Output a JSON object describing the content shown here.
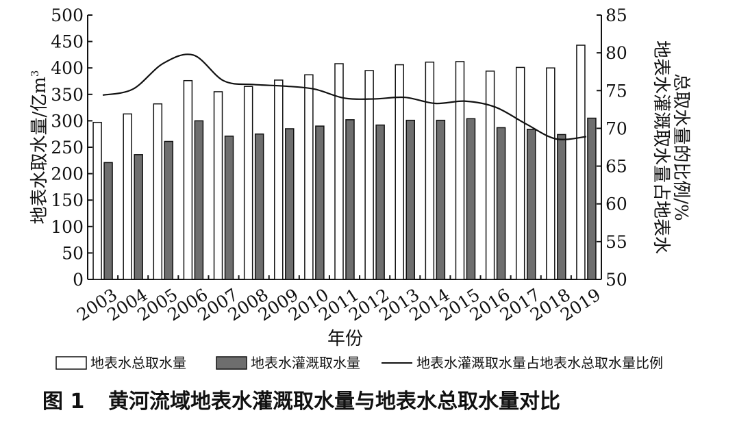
{
  "figure": {
    "caption_number": "图 1",
    "caption_text": "黄河流域地表水灌溉取水量与地表水总取水量对比"
  },
  "chart_data": {
    "type": "bar",
    "categories": [
      "2003",
      "2004",
      "2005",
      "2006",
      "2007",
      "2008",
      "2009",
      "2010",
      "2011",
      "2012",
      "2013",
      "2014",
      "2015",
      "2016",
      "2017",
      "2018",
      "2019"
    ],
    "xlabel": "年份",
    "ylabel_left_main": "地表水取水量/亿m",
    "ylabel_left_sup": "3",
    "ylabel_right_line1": "地表水灌溉取水量占地表水",
    "ylabel_right_line2": "总取水量的比例/%",
    "ylim_left": [
      0,
      500
    ],
    "yticks_left": [
      0,
      50,
      100,
      150,
      200,
      250,
      300,
      350,
      400,
      450,
      500
    ],
    "ylim_right": [
      50,
      85
    ],
    "yticks_right": [
      50,
      55,
      60,
      65,
      70,
      75,
      80,
      85
    ],
    "grid": false,
    "legend_position": "bottom",
    "series": [
      {
        "name": "地表水总取水量",
        "type": "bar",
        "axis": "left",
        "color": "#ffffff",
        "values": [
          297,
          313,
          332,
          376,
          355,
          365,
          377,
          387,
          408,
          395,
          406,
          411,
          412,
          394,
          401,
          400,
          443
        ]
      },
      {
        "name": "地表水灌溉取水量",
        "type": "bar",
        "axis": "left",
        "color": "#6e6e6e",
        "values": [
          221,
          236,
          261,
          300,
          271,
          275,
          285,
          290,
          302,
          292,
          301,
          301,
          304,
          287,
          284,
          274,
          305
        ]
      },
      {
        "name": "地表水灌溉取水量占地表水总取水量比例",
        "type": "line",
        "axis": "right",
        "color": "#111111",
        "values": [
          74.4,
          75.2,
          78.6,
          79.7,
          76.3,
          75.8,
          75.6,
          75.2,
          74.0,
          73.9,
          74.1,
          73.3,
          73.6,
          72.8,
          70.6,
          68.6,
          68.9
        ]
      }
    ]
  }
}
